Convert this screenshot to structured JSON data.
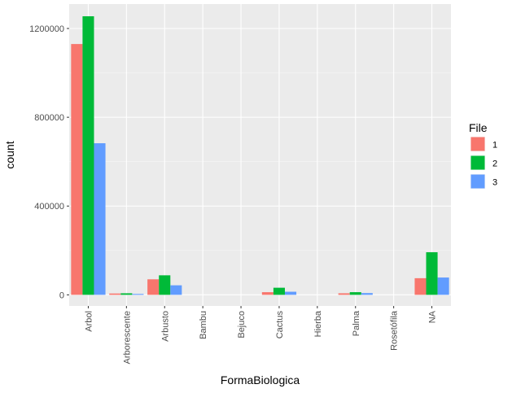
{
  "chart_data": {
    "type": "bar",
    "xlabel": "FormaBiologica",
    "ylabel": "count",
    "categories": [
      "Arbol",
      "Arborescente",
      "Arbusto",
      "Bambu",
      "Bejuco",
      "Cactus",
      "Hierba",
      "Palma",
      "Rosetófila",
      "NA"
    ],
    "series": [
      {
        "name": "1",
        "color": "#F8766D",
        "values": [
          1130000,
          6000,
          70000,
          0,
          0,
          12000,
          0,
          7000,
          0,
          75000
        ]
      },
      {
        "name": "2",
        "color": "#00BA38",
        "values": [
          1255000,
          7000,
          88000,
          0,
          0,
          32000,
          0,
          12000,
          0,
          192000
        ]
      },
      {
        "name": "3",
        "color": "#619CFF",
        "values": [
          683000,
          4000,
          43000,
          0,
          0,
          14000,
          0,
          8000,
          0,
          78000
        ]
      }
    ],
    "yticks": [
      0,
      400000,
      800000,
      1200000
    ],
    "ytick_labels": [
      "0",
      "400000",
      "800000",
      "1200000"
    ],
    "ylim": [
      -50000,
      1310000
    ],
    "legend": {
      "title": "File",
      "position": "right"
    },
    "grid": true
  }
}
